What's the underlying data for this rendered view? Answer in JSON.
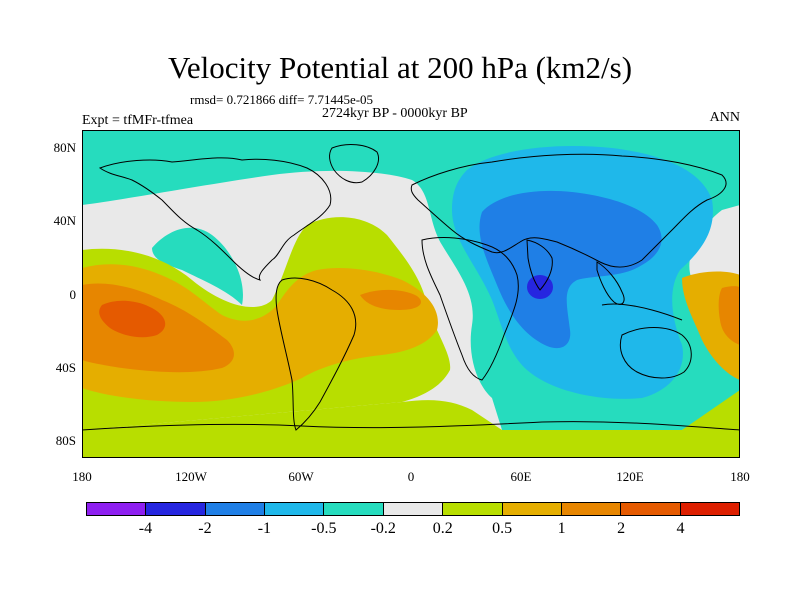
{
  "title": "Velocity Potential at 200 hPa (km2/s)",
  "stats": "rmsd= 0.721866 diff= 7.71445e-05",
  "period": "2724kyr BP - 0000kyr BP",
  "experiment": "Expt = tfMFr-tfmea",
  "season": "ANN",
  "axes": {
    "y_ticks": [
      "80N",
      "40N",
      "0",
      "40S",
      "80S"
    ],
    "x_ticks": [
      "180",
      "120W",
      "60W",
      "0",
      "60E",
      "120E",
      "180"
    ]
  },
  "colorbar": {
    "colors": [
      "#8e1ff0",
      "#2626e0",
      "#1f7fe6",
      "#1fb8ea",
      "#26dcbe",
      "#e9e9e9",
      "#b8de00",
      "#e5ae00",
      "#e78600",
      "#e55a00",
      "#dd1f00"
    ],
    "labels": [
      "-4",
      "-2",
      "-1",
      "-0.5",
      "-0.2",
      "0.2",
      "0.5",
      "1",
      "2",
      "4"
    ]
  },
  "palette": {
    "teal": "#26dcbe",
    "cyan": "#1fb8ea",
    "blue": "#1f7fe6",
    "deep_blue": "#2626e0",
    "gray": "#e9e9e9",
    "lime": "#b8de00",
    "gold": "#e5ae00",
    "orange": "#e78600",
    "red_orange": "#e55a00"
  }
}
